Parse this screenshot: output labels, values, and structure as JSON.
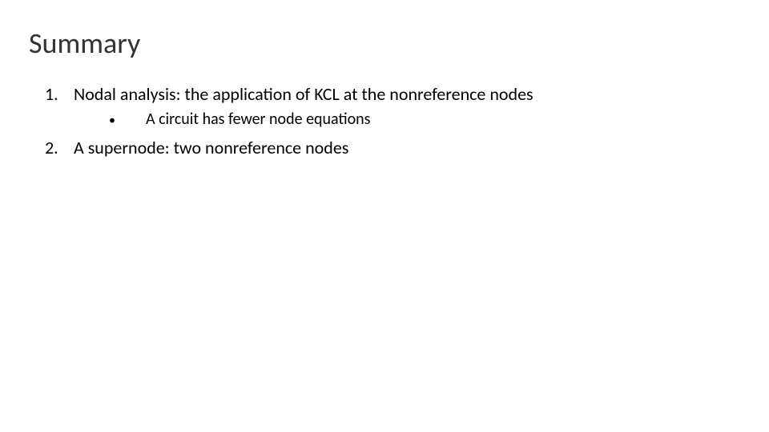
{
  "slide": {
    "title": "Summary",
    "title_color": "#333333",
    "title_fontsize": 36,
    "title_fontweight": 300,
    "background_color": "#ffffff",
    "text_color": "#000000",
    "font_family": "Calibri",
    "items": [
      {
        "number": "1.",
        "text": "Nodal analysis: the application of KCL at the nonreference nodes",
        "subitems": [
          {
            "bullet": "•",
            "text": "A circuit has fewer node equations"
          }
        ]
      },
      {
        "number": "2.",
        "text": "A supernode: two nonreference nodes",
        "subitems": []
      }
    ],
    "item_fontsize": 22,
    "subitem_fontsize": 20
  }
}
